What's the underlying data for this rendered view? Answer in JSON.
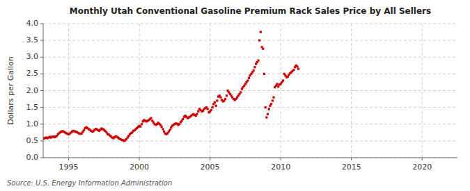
{
  "chart_data": {
    "type": "scatter",
    "title": "Monthly Utah Conventional Gasoline Premium Rack Sales Price by All Sellers",
    "ylabel": "Dollars per Gallon",
    "source": "Source: U.S. Energy Information Administration",
    "color": "#CC0000",
    "marker": "square",
    "grid": true,
    "xlim": [
      1993.2,
      2022.5
    ],
    "ylim": [
      0.0,
      4.0
    ],
    "xticks": [
      1995,
      2000,
      2005,
      2010,
      2015,
      2020
    ],
    "yticks": [
      {
        "value": 0.0,
        "label": "0.0"
      },
      0.5,
      {
        "value": 1.0,
        "label": "1.0"
      },
      1.5,
      {
        "value": 2.0,
        "label": "2.0"
      },
      2.5,
      {
        "value": 3.0,
        "label": "3.0"
      },
      3.5,
      {
        "value": 4.0,
        "label": "4.0"
      }
    ],
    "x": [
      1993.25,
      1993.33,
      1993.42,
      1993.5,
      1993.58,
      1993.67,
      1993.75,
      1993.83,
      1993.92,
      1994.0,
      1994.08,
      1994.17,
      1994.25,
      1994.33,
      1994.42,
      1994.5,
      1994.58,
      1994.67,
      1994.75,
      1994.83,
      1994.92,
      1995.0,
      1995.08,
      1995.17,
      1995.25,
      1995.33,
      1995.42,
      1995.5,
      1995.58,
      1995.67,
      1995.75,
      1995.83,
      1995.92,
      1996.0,
      1996.08,
      1996.17,
      1996.25,
      1996.33,
      1996.42,
      1996.5,
      1996.58,
      1996.67,
      1996.75,
      1996.83,
      1996.92,
      1997.0,
      1997.08,
      1997.17,
      1997.25,
      1997.33,
      1997.42,
      1997.5,
      1997.58,
      1997.67,
      1997.75,
      1997.83,
      1997.92,
      1998.0,
      1998.08,
      1998.17,
      1998.25,
      1998.33,
      1998.42,
      1998.5,
      1998.58,
      1998.67,
      1998.75,
      1998.83,
      1998.92,
      1999.0,
      1999.08,
      1999.17,
      1999.25,
      1999.33,
      1999.42,
      1999.5,
      1999.58,
      1999.67,
      1999.75,
      1999.83,
      1999.92,
      2000.0,
      2000.08,
      2000.17,
      2000.25,
      2000.33,
      2000.42,
      2000.5,
      2000.58,
      2000.67,
      2000.75,
      2000.83,
      2000.92,
      2001.0,
      2001.08,
      2001.17,
      2001.25,
      2001.33,
      2001.42,
      2001.5,
      2001.58,
      2001.67,
      2001.75,
      2001.83,
      2001.92,
      2002.0,
      2002.08,
      2002.17,
      2002.25,
      2002.33,
      2002.42,
      2002.5,
      2002.58,
      2002.67,
      2002.75,
      2002.83,
      2002.92,
      2003.0,
      2003.08,
      2003.17,
      2003.25,
      2003.33,
      2003.42,
      2003.5,
      2003.58,
      2003.67,
      2003.75,
      2003.83,
      2003.92,
      2004.0,
      2004.08,
      2004.17,
      2004.25,
      2004.33,
      2004.42,
      2004.5,
      2004.58,
      2004.67,
      2004.75,
      2004.83,
      2004.92,
      2005.0,
      2005.08,
      2005.17,
      2005.25,
      2005.33,
      2005.42,
      2005.5,
      2005.58,
      2005.67,
      2005.75,
      2005.83,
      2005.92,
      2006.0,
      2006.08,
      2006.17,
      2006.25,
      2006.33,
      2006.42,
      2006.5,
      2006.58,
      2006.67,
      2006.75,
      2006.83,
      2006.92,
      2007.0,
      2007.08,
      2007.17,
      2007.25,
      2007.33,
      2007.42,
      2007.5,
      2007.58,
      2007.67,
      2007.75,
      2007.83,
      2007.92,
      2008.0,
      2008.08,
      2008.17,
      2008.25,
      2008.33,
      2008.42,
      2008.5,
      2008.58,
      2008.67,
      2008.75,
      2008.83,
      2008.92,
      2009.0,
      2009.08,
      2009.17,
      2009.25,
      2009.33,
      2009.42,
      2009.5,
      2009.58,
      2009.67,
      2009.75,
      2009.83,
      2009.92,
      2010.0,
      2010.08,
      2010.17,
      2010.25,
      2010.33,
      2010.42,
      2010.5,
      2010.58,
      2010.67,
      2010.75,
      2010.83,
      2010.92,
      2011.0,
      2011.08,
      2011.17,
      2011.25
    ],
    "values": [
      0.57,
      0.59,
      0.6,
      0.58,
      0.6,
      0.62,
      0.6,
      0.62,
      0.63,
      0.61,
      0.63,
      0.65,
      0.7,
      0.73,
      0.76,
      0.78,
      0.79,
      0.77,
      0.75,
      0.73,
      0.71,
      0.7,
      0.72,
      0.75,
      0.78,
      0.8,
      0.79,
      0.77,
      0.76,
      0.74,
      0.72,
      0.71,
      0.72,
      0.77,
      0.82,
      0.88,
      0.91,
      0.88,
      0.85,
      0.83,
      0.8,
      0.78,
      0.79,
      0.83,
      0.86,
      0.84,
      0.82,
      0.8,
      0.84,
      0.87,
      0.85,
      0.83,
      0.8,
      0.76,
      0.71,
      0.69,
      0.66,
      0.63,
      0.6,
      0.58,
      0.61,
      0.64,
      0.62,
      0.6,
      0.57,
      0.55,
      0.53,
      0.52,
      0.5,
      0.52,
      0.55,
      0.6,
      0.65,
      0.7,
      0.73,
      0.75,
      0.8,
      0.82,
      0.85,
      0.88,
      0.92,
      0.95,
      0.93,
      1.0,
      1.08,
      1.12,
      1.1,
      1.08,
      1.1,
      1.12,
      1.15,
      1.18,
      1.1,
      1.05,
      1.0,
      0.98,
      1.0,
      1.04,
      1.01,
      0.97,
      0.92,
      0.85,
      0.78,
      0.72,
      0.7,
      0.73,
      0.78,
      0.83,
      0.9,
      0.95,
      0.98,
      1.0,
      1.02,
      1.01,
      0.98,
      1.0,
      1.06,
      1.1,
      1.15,
      1.22,
      1.25,
      1.22,
      1.18,
      1.2,
      1.22,
      1.25,
      1.28,
      1.3,
      1.27,
      1.25,
      1.3,
      1.38,
      1.45,
      1.42,
      1.38,
      1.4,
      1.45,
      1.48,
      1.5,
      1.45,
      1.35,
      1.38,
      1.42,
      1.5,
      1.6,
      1.65,
      1.55,
      1.7,
      1.82,
      1.85,
      1.8,
      1.72,
      1.68,
      1.7,
      1.75,
      1.85,
      2.0,
      1.95,
      1.9,
      1.85,
      1.8,
      1.75,
      1.72,
      1.75,
      1.8,
      1.85,
      1.9,
      1.95,
      2.05,
      2.1,
      2.15,
      2.2,
      2.25,
      2.3,
      2.38,
      2.45,
      2.5,
      2.55,
      2.6,
      2.7,
      2.8,
      2.85,
      2.9,
      3.5,
      3.75,
      3.3,
      3.25,
      2.5,
      1.5,
      1.2,
      1.3,
      1.45,
      1.55,
      1.6,
      1.7,
      1.8,
      2.1,
      2.15,
      2.2,
      2.12,
      2.18,
      2.2,
      2.25,
      2.3,
      2.5,
      2.45,
      2.4,
      2.42,
      2.48,
      2.52,
      2.55,
      2.58,
      2.62,
      2.7,
      2.75,
      2.72,
      2.65
    ]
  }
}
